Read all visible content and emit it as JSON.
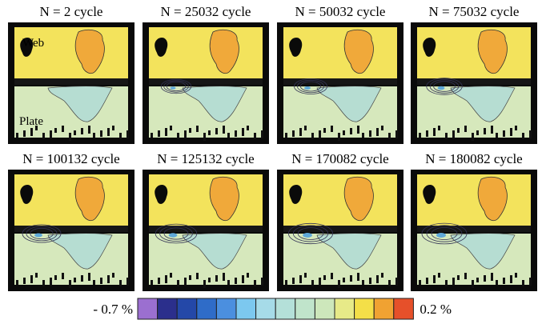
{
  "figure": {
    "panels": [
      {
        "title": "N = 2 cycle"
      },
      {
        "title": "N = 25032 cycle"
      },
      {
        "title": "N = 50032 cycle"
      },
      {
        "title": "N = 75032 cycle"
      },
      {
        "title": "N = 100132 cycle"
      },
      {
        "title": "N = 125132 cycle"
      },
      {
        "title": "N = 170082 cycle"
      },
      {
        "title": "N = 180082 cycle"
      }
    ],
    "region_labels": {
      "web": "Web",
      "plate": "Plate"
    },
    "colorbar": {
      "min_label": "- 0.7 %",
      "max_label": "0.2 %",
      "colors": [
        "#9b6fd0",
        "#2b2f8c",
        "#2448a8",
        "#2f6cc8",
        "#4b8fdf",
        "#7cc8ef",
        "#a6dbe8",
        "#b4e0d9",
        "#c0e4cb",
        "#cde7bb",
        "#e7ea88",
        "#f4df48",
        "#f0a232",
        "#e6502a"
      ]
    }
  }
}
